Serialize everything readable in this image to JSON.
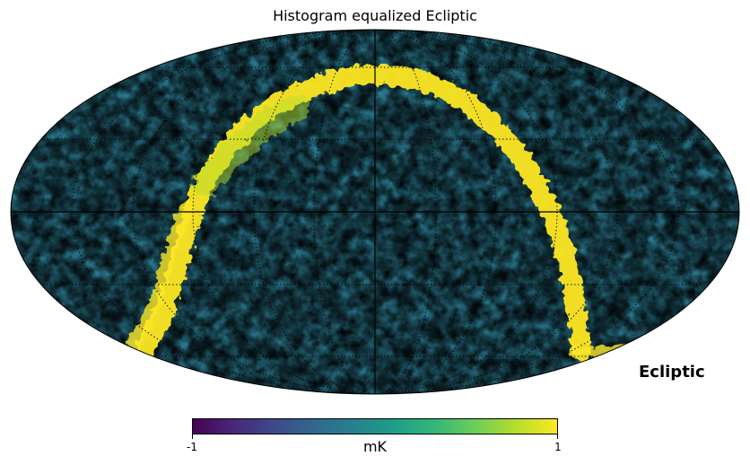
{
  "title": "Histogram equalized Ecliptic",
  "coord_system_label": "Ecliptic",
  "projection": "mollweide",
  "colormap": {
    "name": "viridis",
    "stops": [
      "#440154",
      "#3b528b",
      "#21918c",
      "#5ec962",
      "#fde725"
    ]
  },
  "colorbar": {
    "min_label": "-1",
    "max_label": "1",
    "unit": "mK",
    "min": -1,
    "max": 1
  },
  "graticule": {
    "shown": true,
    "style": "dotted",
    "axes_lines": "solid"
  },
  "chart_data": {
    "type": "heatmap",
    "title": "Histogram equalized Ecliptic",
    "projection": "mollweide",
    "coordinate_system": "Ecliptic",
    "value_range": [
      -1,
      1
    ],
    "unit": "mK",
    "colormap": "viridis",
    "features": [
      "noise-dominated CMB-like field across the full sky",
      "bright yellow arc tracing the Galactic plane in Ecliptic coordinates, curving from lower-left up over the top and down the right side"
    ]
  }
}
